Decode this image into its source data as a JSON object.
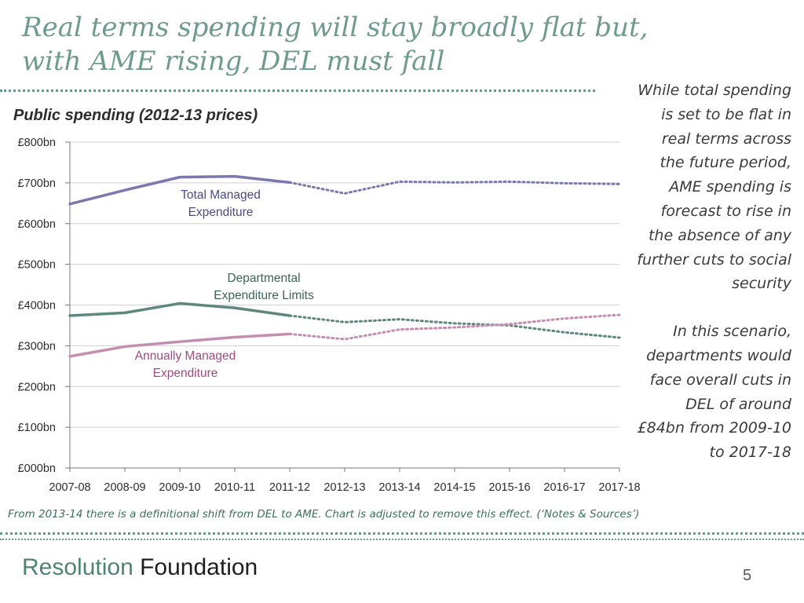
{
  "slide": {
    "title_line1": "Real terms spending will stay broadly flat but,",
    "title_line2": "with AME rising, DEL must fall",
    "side_text_p1": "While total spending is set to be flat in real terms across the future period, AME spending is forecast to rise in the absence of any further cuts to social security",
    "side_text_p2": "In this scenario, departments would face overall cuts in DEL of around £84bn from 2009-10  to 2017-18",
    "footnote": "From 2013-14 there is a definitional shift from DEL to AME. Chart is adjusted to remove this effect. (‘Notes & Sources’)",
    "brand_a": "Resolution",
    "brand_b": "Foundation",
    "page_number": "5"
  },
  "colors": {
    "accent": "#6f9a8e",
    "tme": "#7b78ad",
    "del": "#5e877e",
    "ame": "#c48eb0",
    "grid": "#d0d0d0"
  },
  "chart_data": {
    "type": "line",
    "title": "Public spending (2012-13 prices)",
    "xlabel": "",
    "ylabel": "",
    "categories": [
      "2007-08",
      "2008-09",
      "2009-10",
      "2010-11",
      "2011-12",
      "2012-13",
      "2013-14",
      "2014-15",
      "2015-16",
      "2016-17",
      "2017-18"
    ],
    "ylim": [
      0,
      800
    ],
    "yticks": [
      0,
      100,
      200,
      300,
      400,
      500,
      600,
      700,
      800
    ],
    "ytick_labels": [
      "£000bn",
      "£100bn",
      "£200bn",
      "£300bn",
      "£400bn",
      "£500bn",
      "£600bn",
      "£700bn",
      "£800bn"
    ],
    "grid": true,
    "solid_through": "2011-12",
    "dotted_from": "2011-12",
    "series": [
      {
        "name": "Total Managed Expenditure",
        "values": [
          648,
          682,
          714,
          716,
          701,
          674,
          703,
          701,
          703,
          699,
          697
        ],
        "color": "#7b78ad",
        "label_lines": [
          "Total Managed",
          "Expenditure"
        ]
      },
      {
        "name": "Departmental Expenditure Limits",
        "values": [
          374,
          381,
          404,
          393,
          374,
          358,
          365,
          355,
          350,
          333,
          320
        ],
        "color": "#5e877e",
        "label_lines": [
          "Departmental",
          "Expenditure Limits"
        ]
      },
      {
        "name": "Annually Managed Expenditure",
        "values": [
          274,
          298,
          310,
          321,
          329,
          316,
          340,
          345,
          353,
          367,
          376
        ],
        "color": "#c48eb0",
        "label_lines": [
          "Annually Managed",
          "Expenditure"
        ]
      }
    ]
  }
}
